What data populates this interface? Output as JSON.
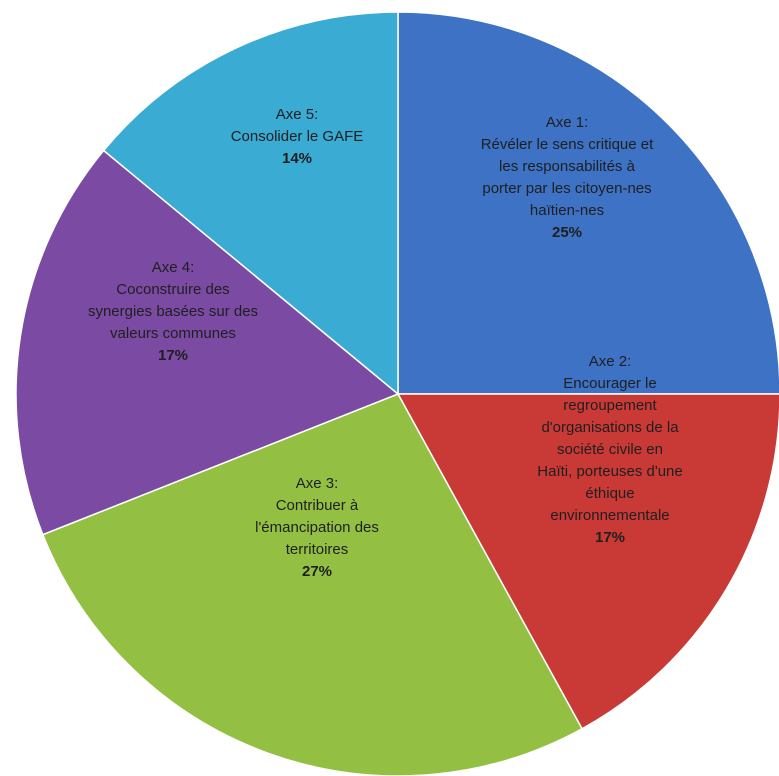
{
  "chart_data": {
    "type": "pie",
    "title": "",
    "slices": [
      {
        "axis": "Axe 1:",
        "lines": [
          "Révéler le sens critique et",
          "les responsabilités à",
          "porter par les citoyen-nes",
          "haïtien-nes"
        ],
        "value": 25,
        "pct_label": "25%",
        "color": "#3d72c4"
      },
      {
        "axis": "Axe 2:",
        "lines": [
          "Encourager le",
          "regroupement",
          "d'organisations de la",
          "société civile en",
          "Haïti, porteuses d'une",
          "éthique",
          "environnementale"
        ],
        "value": 17,
        "pct_label": "17%",
        "color": "#c93a36"
      },
      {
        "axis": "Axe 3:",
        "lines": [
          "Contribuer à",
          "l'émancipation des",
          "territoires"
        ],
        "value": 27,
        "pct_label": "27%",
        "color": "#93c042"
      },
      {
        "axis": "Axe 4:",
        "lines": [
          "Coconstruire des",
          "synergies basées sur des",
          "valeurs communes"
        ],
        "value": 17,
        "pct_label": "17%",
        "color": "#7b4ba3"
      },
      {
        "axis": "Axe 5:",
        "lines": [
          "Consolider le GAFE"
        ],
        "value": 14,
        "pct_label": "14%",
        "color": "#3aabd3"
      }
    ]
  }
}
